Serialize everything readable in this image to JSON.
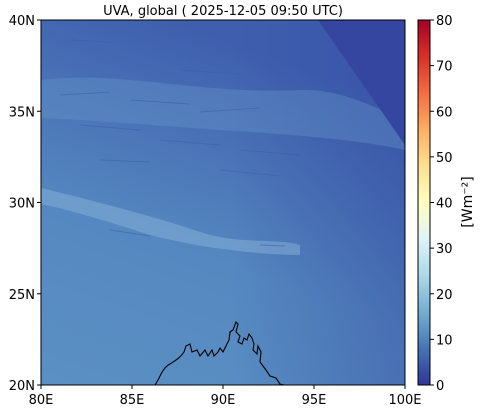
{
  "title": "UVA, global ( 2025-12-05 09:50 UTC)",
  "map": {
    "lon_range": [
      80,
      100
    ],
    "lat_range": [
      20,
      40
    ],
    "x_ticks": [
      {
        "value": 80,
        "label": "80E"
      },
      {
        "value": 85,
        "label": "85E"
      },
      {
        "value": 90,
        "label": "90E"
      },
      {
        "value": 95,
        "label": "95E"
      },
      {
        "value": 100,
        "label": "100E"
      }
    ],
    "y_ticks": [
      {
        "value": 20,
        "label": "20N"
      },
      {
        "value": 25,
        "label": "25N"
      },
      {
        "value": 30,
        "label": "30N"
      },
      {
        "value": 35,
        "label": "35N"
      },
      {
        "value": 40,
        "label": "40N"
      }
    ],
    "field_color_south": "#5b90c4",
    "field_color_north": "#3f5fae",
    "outside_color": "#3446a0",
    "coastline_color": "#000000"
  },
  "colorbar": {
    "range": [
      0,
      80
    ],
    "ticks": [
      {
        "value": 0,
        "label": "0"
      },
      {
        "value": 10,
        "label": "10"
      },
      {
        "value": 20,
        "label": "20"
      },
      {
        "value": 30,
        "label": "30"
      },
      {
        "value": 40,
        "label": "40"
      },
      {
        "value": 50,
        "label": "50"
      },
      {
        "value": 60,
        "label": "60"
      },
      {
        "value": 70,
        "label": "70"
      },
      {
        "value": 80,
        "label": "80"
      }
    ],
    "label": "[Wm⁻²]",
    "colors": [
      "#313695",
      "#4575b4",
      "#74add1",
      "#abd9e9",
      "#e0f3f8",
      "#ffffbf",
      "#fee090",
      "#fdae61",
      "#f46d43",
      "#d73027",
      "#a50026"
    ]
  }
}
